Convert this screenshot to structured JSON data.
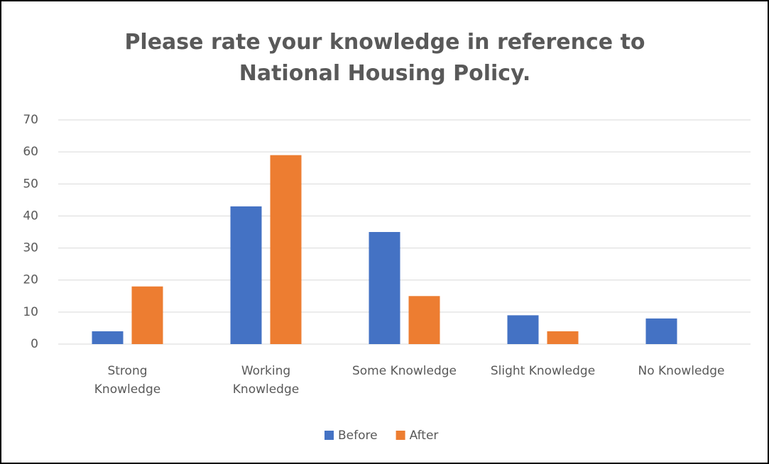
{
  "chart_data": {
    "type": "bar",
    "title": "Please rate your knowledge in reference to National Housing Policy.",
    "categories": [
      "Strong\nKnowledge",
      "Working\nKnowledge",
      "Some Knowledge",
      "Slight Knowledge",
      "No Knowledge"
    ],
    "series": [
      {
        "name": "Before",
        "color": "#4472c4",
        "values": [
          4,
          43,
          35,
          9,
          8
        ]
      },
      {
        "name": "After",
        "color": "#ed7d31",
        "values": [
          18,
          59,
          15,
          4,
          0
        ]
      }
    ],
    "ylim": [
      0,
      70
    ],
    "yticks": [
      0,
      10,
      20,
      30,
      40,
      50,
      60,
      70
    ],
    "grid": true,
    "legend": "bottom"
  }
}
